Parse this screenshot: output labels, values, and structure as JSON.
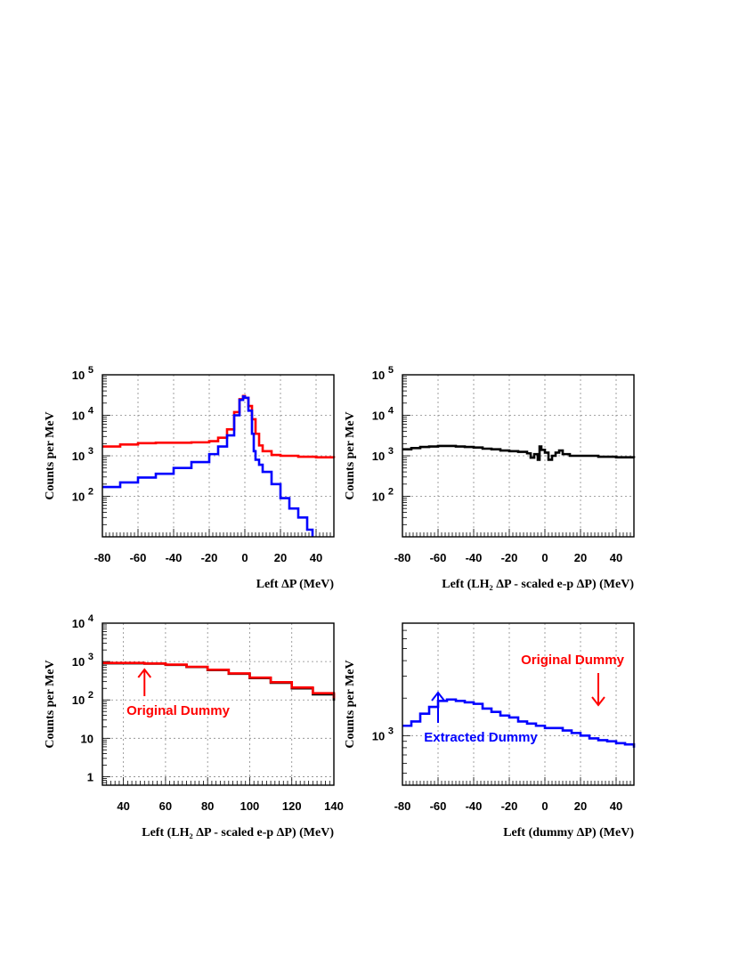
{
  "chart_data": [
    {
      "type": "line",
      "ylabel": "Counts per MeV",
      "xlabel": "Left ΔP (MeV)",
      "xlim": [
        -80,
        50
      ],
      "ylim": [
        10,
        100000
      ],
      "yscale": "log",
      "grid": true,
      "xticks": [
        "-80",
        "-60",
        "-40",
        "-20",
        "0",
        "20",
        "40"
      ],
      "yticks": [
        "10 2",
        "10 3",
        "10 4",
        "10 5"
      ],
      "series": [
        {
          "color": "#ff0000",
          "x": [
            -80,
            -70,
            -60,
            -50,
            -40,
            -30,
            -20,
            -15,
            -10,
            -6,
            -3,
            -1,
            0,
            2,
            4,
            6,
            8,
            10,
            15,
            20,
            30,
            40,
            50
          ],
          "y": [
            1700,
            1900,
            2050,
            2100,
            2100,
            2150,
            2300,
            2800,
            4500,
            12000,
            25000,
            30000,
            27000,
            17000,
            8000,
            3500,
            1800,
            1300,
            1050,
            1000,
            950,
            920,
            880
          ]
        },
        {
          "color": "#0000ff",
          "x": [
            -80,
            -70,
            -60,
            -50,
            -40,
            -30,
            -20,
            -15,
            -10,
            -6,
            -3,
            -1,
            0,
            2,
            4,
            5,
            6,
            8,
            10,
            15,
            20,
            25,
            30,
            35,
            38
          ],
          "y": [
            170,
            220,
            290,
            360,
            500,
            700,
            1100,
            1700,
            3200,
            10000,
            24000,
            29000,
            27000,
            13000,
            3500,
            1300,
            800,
            600,
            400,
            200,
            90,
            50,
            30,
            15,
            10
          ]
        }
      ]
    },
    {
      "type": "line",
      "ylabel": "Counts per MeV",
      "xlabel": "Left (LH₂ ΔP - scaled e-p ΔP) (MeV)",
      "xlim": [
        -80,
        50
      ],
      "ylim": [
        10,
        100000
      ],
      "yscale": "log",
      "grid": true,
      "xticks": [
        "-80",
        "-60",
        "-40",
        "-20",
        "0",
        "20",
        "40"
      ],
      "yticks": [
        "10 2",
        "10 3",
        "10 4",
        "10 5"
      ],
      "series": [
        {
          "color": "#000000",
          "x": [
            -80,
            -75,
            -70,
            -65,
            -60,
            -55,
            -50,
            -45,
            -40,
            -35,
            -30,
            -25,
            -20,
            -15,
            -10,
            -8,
            -6,
            -4,
            -3,
            -2,
            0,
            2,
            4,
            6,
            8,
            10,
            14,
            20,
            30,
            40,
            50
          ],
          "y": [
            1450,
            1550,
            1650,
            1700,
            1750,
            1750,
            1700,
            1650,
            1600,
            1500,
            1450,
            1350,
            1300,
            1250,
            1150,
            900,
            1100,
            800,
            1700,
            1400,
            1200,
            800,
            1000,
            1200,
            1350,
            1100,
            1000,
            1000,
            950,
            920,
            880
          ]
        }
      ]
    },
    {
      "type": "line",
      "ylabel": "Counts per MeV",
      "xlabel": "Left (LH₂ ΔP - scaled e-p ΔP) (MeV)",
      "xlim": [
        30,
        140
      ],
      "ylim": [
        0.6,
        10000
      ],
      "yscale": "log",
      "grid": true,
      "xticks": [
        "40",
        "60",
        "80",
        "100",
        "120",
        "140"
      ],
      "yticks": [
        "1",
        "10",
        "10 2",
        "10 3",
        "10 4"
      ],
      "annotations": [
        {
          "text": "Original Dummy",
          "color": "#ff0000",
          "arrow_x": 50
        }
      ],
      "series": [
        {
          "color": "#000000",
          "x": [
            30,
            40,
            50,
            60,
            70,
            80,
            90,
            100,
            110,
            120,
            130,
            140
          ],
          "y": [
            900,
            900,
            880,
            820,
            720,
            600,
            480,
            370,
            280,
            200,
            140,
            95
          ]
        },
        {
          "color": "#ff0000",
          "x": [
            30,
            40,
            50,
            60,
            70,
            80,
            90,
            100,
            110,
            120,
            130,
            140
          ],
          "y": [
            920,
            920,
            890,
            830,
            730,
            610,
            490,
            380,
            290,
            210,
            150,
            110
          ]
        }
      ]
    },
    {
      "type": "line",
      "ylabel": "Counts per MeV",
      "xlabel": "Left (dummy ΔP) (MeV)",
      "xlim": [
        -80,
        50
      ],
      "ylim": [
        400,
        8000
      ],
      "yscale": "log",
      "grid": true,
      "xticks": [
        "-80",
        "-60",
        "-40",
        "-20",
        "0",
        "20",
        "40"
      ],
      "yticks": [
        "10 3"
      ],
      "annotations": [
        {
          "text": "Extracted Dummy",
          "color": "#0000ff",
          "arrow_x": -60
        },
        {
          "text": "Original Dummy",
          "color": "#ff0000",
          "arrow_x": 30
        }
      ],
      "series": [
        {
          "color": "#0000ff",
          "x": [
            -80,
            -75,
            -70,
            -65,
            -60,
            -55,
            -50,
            -45,
            -40,
            -35,
            -30,
            -25,
            -20,
            -15,
            -10,
            -5,
            0,
            5,
            10,
            15,
            20,
            25,
            30,
            35,
            40,
            45,
            50
          ],
          "y": [
            1200,
            1300,
            1500,
            1700,
            1900,
            1950,
            1900,
            1850,
            1800,
            1650,
            1550,
            1450,
            1400,
            1300,
            1250,
            1200,
            1150,
            1150,
            1100,
            1050,
            1000,
            950,
            920,
            900,
            870,
            850,
            800
          ]
        }
      ]
    }
  ]
}
